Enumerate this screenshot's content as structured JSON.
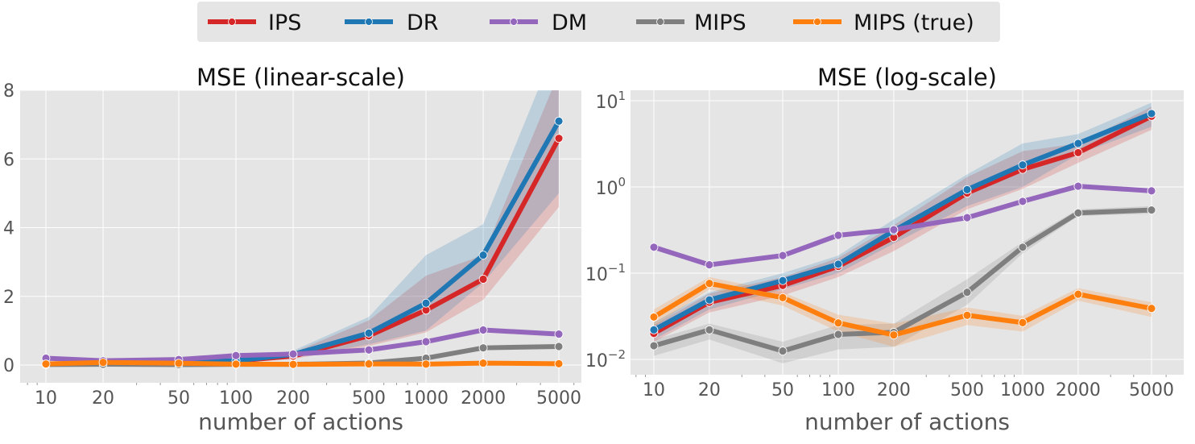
{
  "legend": {
    "placement": "top-center",
    "items": [
      {
        "label": "IPS",
        "color": "#d62728"
      },
      {
        "label": "DR",
        "color": "#1f77b4"
      },
      {
        "label": "DM",
        "color": "#9467bd"
      },
      {
        "label": "MIPS",
        "color": "#7f7f7f"
      },
      {
        "label": "MIPS (true)",
        "color": "#ff7f0e"
      }
    ]
  },
  "chart_data": [
    {
      "type": "line",
      "title": "MSE (linear-scale)",
      "xlabel": "number of actions",
      "ylabel": "",
      "xscale": "log",
      "yscale": "linear",
      "ylim": [
        -0.5,
        8
      ],
      "yticks": [
        0,
        2,
        4,
        6,
        8
      ],
      "grid": true,
      "x": [
        10,
        20,
        50,
        100,
        200,
        500,
        1000,
        2000,
        5000
      ],
      "series_ref": "shared"
    },
    {
      "type": "line",
      "title": "MSE (log-scale)",
      "xlabel": "number of actions",
      "ylabel": "",
      "xscale": "log",
      "yscale": "log",
      "ylim": [
        0.0065,
        13
      ],
      "yticks": [
        0.01,
        0.1,
        1,
        10
      ],
      "grid": true,
      "x": [
        10,
        20,
        50,
        100,
        200,
        500,
        1000,
        2000,
        5000
      ],
      "series_ref": "shared"
    }
  ],
  "series": [
    {
      "name": "IPS",
      "color": "#d62728",
      "values": [
        0.02,
        0.046,
        0.072,
        0.12,
        0.26,
        0.85,
        1.6,
        2.5,
        6.6
      ],
      "lower": [
        0.016,
        0.035,
        0.055,
        0.09,
        0.18,
        0.55,
        0.95,
        1.9,
        4.6
      ],
      "upper": [
        0.025,
        0.058,
        0.09,
        0.15,
        0.36,
        1.3,
        2.6,
        3.2,
        8.5
      ]
    },
    {
      "name": "DR",
      "color": "#1f77b4",
      "values": [
        0.022,
        0.049,
        0.082,
        0.127,
        0.31,
        0.93,
        1.8,
        3.2,
        7.1
      ],
      "lower": [
        0.017,
        0.038,
        0.065,
        0.1,
        0.22,
        0.6,
        1.0,
        2.4,
        5.0
      ],
      "upper": [
        0.027,
        0.06,
        0.1,
        0.16,
        0.42,
        1.4,
        3.2,
        4.1,
        9.5
      ]
    },
    {
      "name": "DM",
      "color": "#9467bd",
      "values": [
        0.2,
        0.125,
        0.16,
        0.275,
        0.32,
        0.44,
        0.68,
        1.02,
        0.9
      ],
      "lower": [
        0.19,
        0.118,
        0.152,
        0.26,
        0.3,
        0.42,
        0.65,
        0.97,
        0.86
      ],
      "upper": [
        0.21,
        0.132,
        0.168,
        0.29,
        0.34,
        0.46,
        0.71,
        1.07,
        0.94
      ]
    },
    {
      "name": "MIPS",
      "color": "#7f7f7f",
      "values": [
        0.0144,
        0.022,
        0.0125,
        0.0195,
        0.0206,
        0.06,
        0.2,
        0.5,
        0.54
      ],
      "lower": [
        0.011,
        0.017,
        0.009,
        0.013,
        0.014,
        0.043,
        0.17,
        0.46,
        0.49
      ],
      "upper": [
        0.017,
        0.026,
        0.016,
        0.025,
        0.026,
        0.085,
        0.23,
        0.55,
        0.6
      ]
    },
    {
      "name": "MIPS (true)",
      "color": "#ff7f0e",
      "values": [
        0.031,
        0.076,
        0.052,
        0.0265,
        0.0192,
        0.0325,
        0.0267,
        0.057,
        0.039
      ],
      "lower": [
        0.024,
        0.065,
        0.042,
        0.021,
        0.014,
        0.025,
        0.021,
        0.048,
        0.031
      ],
      "upper": [
        0.038,
        0.09,
        0.06,
        0.033,
        0.026,
        0.04,
        0.032,
        0.067,
        0.046
      ]
    }
  ],
  "x_tick_labels": [
    "10",
    "20",
    "50",
    "100",
    "200",
    "500",
    "1000",
    "2000",
    "5000"
  ],
  "y_tick_labels_linear": [
    "0",
    "2",
    "4",
    "6",
    "8"
  ],
  "y_tick_labels_log": [
    {
      "base": "10",
      "exp": "−2"
    },
    {
      "base": "10",
      "exp": "−1"
    },
    {
      "base": "10",
      "exp": "0"
    },
    {
      "base": "10",
      "exp": "1"
    }
  ]
}
